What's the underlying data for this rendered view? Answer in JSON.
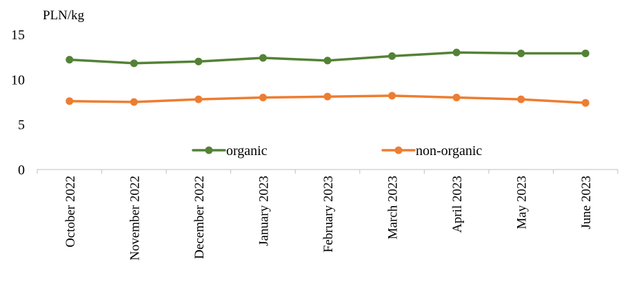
{
  "chart_data": {
    "type": "line",
    "ylabel": "PLN/kg",
    "ylim": [
      0,
      15
    ],
    "yticks": [
      "0",
      "5",
      "10",
      "15"
    ],
    "grid": false,
    "legend_position": "bottom-center",
    "categories": [
      "October 2022",
      "November 2022",
      "December 2022",
      "January 2023",
      "February 2023",
      "March 2023",
      "April 2023",
      "May 2023",
      "June 2023"
    ],
    "series": [
      {
        "name": "organic",
        "color": "#548235",
        "values": [
          12.2,
          11.8,
          12.0,
          12.4,
          12.1,
          12.6,
          13.0,
          12.9,
          12.9
        ]
      },
      {
        "name": "non-organic",
        "color": "#ED7D31",
        "values": [
          7.6,
          7.5,
          7.8,
          8.0,
          8.1,
          8.2,
          8.0,
          7.8,
          7.4
        ]
      }
    ]
  }
}
